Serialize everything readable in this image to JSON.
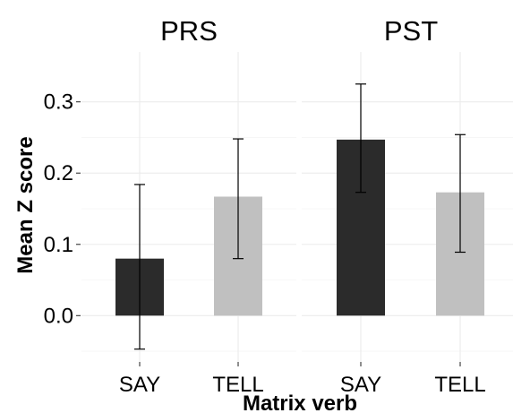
{
  "chart_data": {
    "type": "bar",
    "xlabel": "Matrix verb",
    "ylabel": "Mean Z score",
    "ylim": [
      -0.065,
      0.37
    ],
    "yticks": [
      0.0,
      0.1,
      0.2,
      0.3
    ],
    "ytick_labels": [
      "0.0",
      "0.1",
      "0.2",
      "0.3"
    ],
    "grid": true,
    "legend": "none",
    "colors": {
      "SAY": "#2b2b2b",
      "TELL": "#c0c0c0"
    },
    "categories": [
      "SAY",
      "TELL"
    ],
    "facets": [
      {
        "name": "PRS",
        "values": [
          0.08,
          0.167
        ],
        "error_low": [
          -0.047,
          0.08
        ],
        "error_high": [
          0.184,
          0.248
        ]
      },
      {
        "name": "PST",
        "values": [
          0.247,
          0.173
        ],
        "error_low": [
          0.173,
          0.089
        ],
        "error_high": [
          0.325,
          0.254
        ]
      }
    ]
  }
}
